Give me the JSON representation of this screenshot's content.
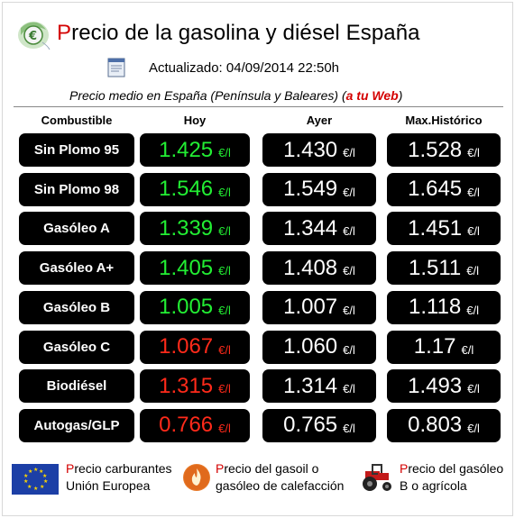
{
  "header": {
    "title_first_letter": "P",
    "title_rest": "recio de la gasolina y diésel España",
    "updated_label": "Actualizado:",
    "updated_value": "04/09/2014 22:50h",
    "average_text": "Precio medio en España (Península y Baleares) (",
    "average_link": "a tu Web",
    "average_close": ")"
  },
  "columns": [
    "Combustible",
    "Hoy",
    "Ayer",
    "Max.Histórico"
  ],
  "unit": "€/l",
  "rows": [
    {
      "name": "Sin Plomo 95",
      "hoy": "1.425",
      "hoy_trend": "down",
      "ayer": "1.430",
      "max": "1.528"
    },
    {
      "name": "Sin Plomo 98",
      "hoy": "1.546",
      "hoy_trend": "down",
      "ayer": "1.549",
      "max": "1.645"
    },
    {
      "name": "Gasóleo A",
      "hoy": "1.339",
      "hoy_trend": "down",
      "ayer": "1.344",
      "max": "1.451"
    },
    {
      "name": "Gasóleo A+",
      "hoy": "1.405",
      "hoy_trend": "down",
      "ayer": "1.408",
      "max": "1.511"
    },
    {
      "name": "Gasóleo B",
      "hoy": "1.005",
      "hoy_trend": "down",
      "ayer": "1.007",
      "max": "1.118"
    },
    {
      "name": "Gasóleo C",
      "hoy": "1.067",
      "hoy_trend": "up",
      "ayer": "1.060",
      "max": "1.17"
    },
    {
      "name": "Biodiésel",
      "hoy": "1.315",
      "hoy_trend": "up",
      "ayer": "1.314",
      "max": "1.493"
    },
    {
      "name": "Autogas/GLP",
      "hoy": "0.766",
      "hoy_trend": "up",
      "ayer": "0.765",
      "max": "0.803"
    }
  ],
  "colors": {
    "down": "#22ee33",
    "up": "#ff2a1a",
    "accent": "#d40000"
  },
  "footer": [
    {
      "icon": "eu-flag-icon",
      "first": "P",
      "line1_rest": "recio carburantes",
      "line2": "Unión Europea"
    },
    {
      "icon": "flame-icon",
      "first": "P",
      "line1_rest": "recio del gasoil o",
      "line2": "gasóleo de calefacción"
    },
    {
      "icon": "tractor-icon",
      "first": "P",
      "line1_rest": "recio del gasóleo",
      "line2": "B o agrícola"
    }
  ]
}
